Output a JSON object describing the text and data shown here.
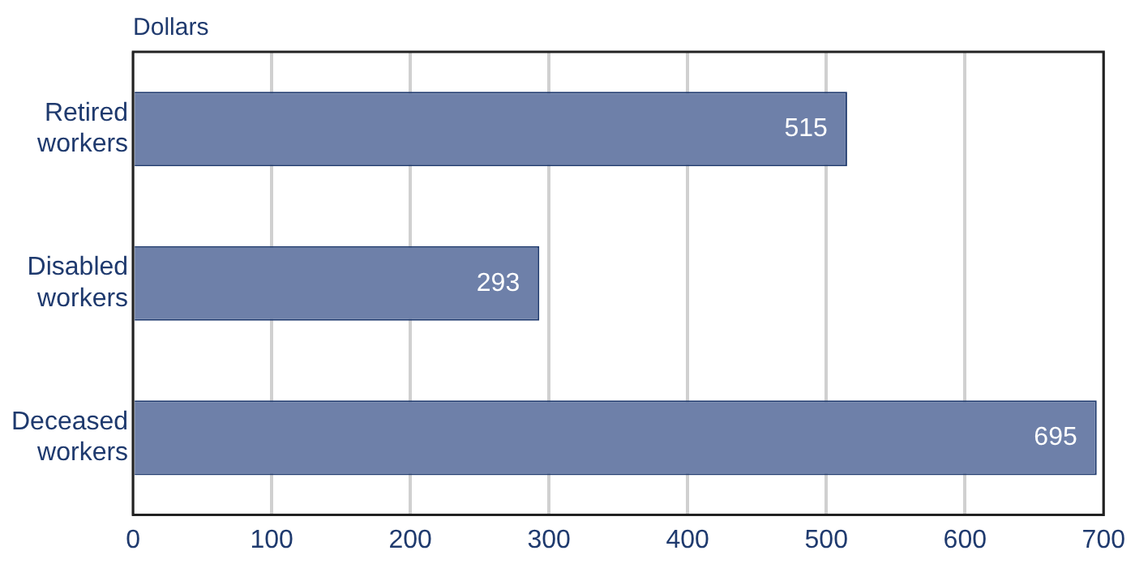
{
  "chart_data": {
    "type": "bar",
    "orientation": "horizontal",
    "xlabel": "Dollars",
    "categories": [
      "Retired workers",
      "Disabled workers",
      "Deceased workers"
    ],
    "values": [
      515,
      293,
      695
    ],
    "color": "#6e80a9",
    "xlim": [
      0,
      700
    ],
    "xticks": [
      0,
      100,
      200,
      300,
      400,
      500,
      600,
      700
    ],
    "grid": "x",
    "data_labels": true,
    "legend": false
  }
}
